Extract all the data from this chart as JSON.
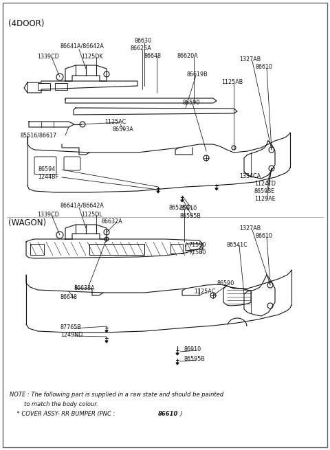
{
  "bg_color": "#ffffff",
  "line_color": "#111111",
  "text_color": "#111111",
  "section_4door": "(4DOOR)",
  "section_wagon": "(WAGON)",
  "note_line1": "NOTE : The following part is supplied in a raw state and should be painted",
  "note_line2": "        to match the body colour.",
  "note_line3a": "          * COVER ASSY– RR BUMPER (PNC : ",
  "note_line3b": "86610",
  "note_line3c": ")",
  "figsize": [
    4.8,
    6.55
  ],
  "dpi": 100
}
